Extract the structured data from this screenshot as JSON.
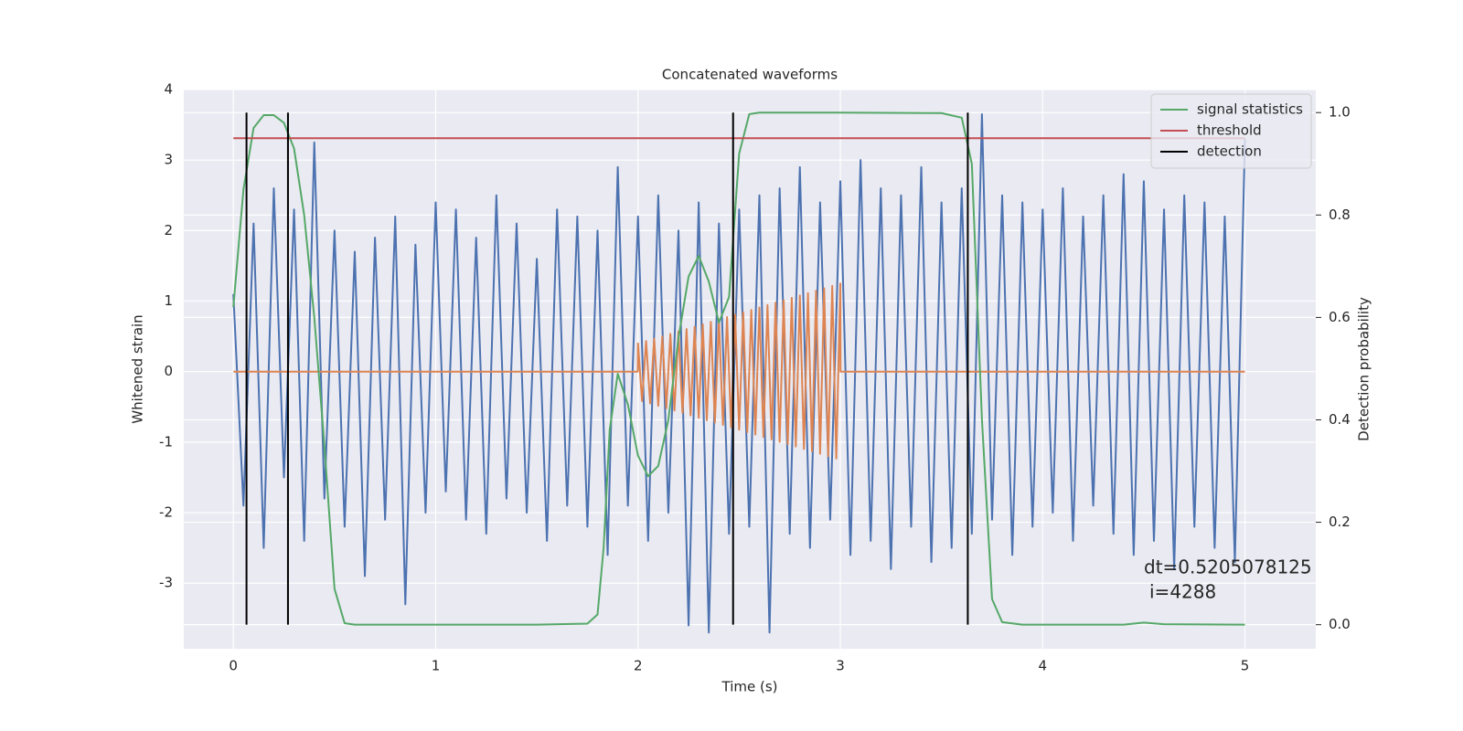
{
  "chart_data": {
    "type": "line",
    "title": "Concatenated waveforms",
    "xlabel": "Time (s)",
    "ylabel": "Whitened strain",
    "y2label": "Detection probability",
    "xlim": [
      -0.245,
      5.35
    ],
    "ylim": [
      -3.93,
      4.0
    ],
    "y2lim": [
      -0.047,
      1.045
    ],
    "xticks": [
      0,
      1,
      2,
      3,
      4,
      5
    ],
    "yticks": [
      -3,
      -2,
      -1,
      0,
      1,
      2,
      3,
      4
    ],
    "y2ticks": [
      {
        "value": 0,
        "label": "0.0"
      },
      {
        "value": 0.2,
        "label": "0.2"
      },
      {
        "value": 0.4,
        "label": "0.4"
      },
      {
        "value": 0.6,
        "label": "0.6"
      },
      {
        "value": 0.8,
        "label": "0.8"
      },
      {
        "value": 1,
        "label": "1.0"
      }
    ],
    "grid": true,
    "legend": "upper right",
    "annotation": [
      "dt=0.5205078125",
      "i=4288"
    ],
    "series": [
      {
        "color": "#4c72b0",
        "x": [
          0,
          0.05,
          0.1,
          0.15,
          0.2,
          0.25,
          0.3,
          0.35,
          0.4,
          0.45,
          0.5,
          0.55,
          0.6,
          0.65,
          0.7,
          0.75,
          0.8,
          0.85,
          0.9,
          0.95,
          1,
          1.05,
          1.1,
          1.15,
          1.2,
          1.25,
          1.3,
          1.35,
          1.4,
          1.45,
          1.5,
          1.55,
          1.6,
          1.65,
          1.7,
          1.75,
          1.8,
          1.85,
          1.9,
          1.95,
          2,
          2.05,
          2.1,
          2.15,
          2.2,
          2.25,
          2.3,
          2.35,
          2.4,
          2.45,
          2.5,
          2.55,
          2.6,
          2.65,
          2.7,
          2.75,
          2.8,
          2.85,
          2.9,
          2.95,
          3,
          3.05,
          3.1,
          3.15,
          3.2,
          3.25,
          3.3,
          3.35,
          3.4,
          3.45,
          3.5,
          3.55,
          3.6,
          3.65,
          3.7,
          3.75,
          3.8,
          3.85,
          3.9,
          3.95,
          4,
          4.05,
          4.1,
          4.15,
          4.2,
          4.25,
          4.3,
          4.35,
          4.4,
          4.45,
          4.5,
          4.55,
          4.6,
          4.65,
          4.7,
          4.75,
          4.8,
          4.85,
          4.9,
          4.95,
          5
        ],
        "values": [
          1.1,
          -1.9,
          2.1,
          -2.5,
          2.6,
          -1.5,
          2.3,
          -2.4,
          3.25,
          -1.8,
          2.0,
          -2.2,
          1.7,
          -2.9,
          1.9,
          -2.1,
          2.2,
          -3.3,
          1.8,
          -2.0,
          2.4,
          -1.7,
          2.3,
          -2.1,
          1.9,
          -2.3,
          2.5,
          -1.8,
          2.1,
          -2.0,
          1.6,
          -2.4,
          2.3,
          -1.9,
          2.2,
          -2.2,
          2.0,
          -2.6,
          2.9,
          -1.9,
          2.2,
          -2.4,
          2.5,
          -2.0,
          2.0,
          -3.6,
          2.4,
          -3.7,
          2.1,
          -2.3,
          2.3,
          -2.2,
          2.5,
          -3.7,
          2.6,
          -2.3,
          2.9,
          -2.5,
          2.4,
          -2.1,
          2.7,
          -2.6,
          3.0,
          -2.4,
          2.6,
          -2.8,
          2.5,
          -2.2,
          2.9,
          -2.7,
          2.4,
          -2.5,
          2.6,
          -2.3,
          3.65,
          -2.1,
          2.5,
          -2.6,
          2.4,
          -2.2,
          2.3,
          -2.0,
          2.6,
          -2.4,
          2.2,
          -1.9,
          2.5,
          -2.3,
          2.8,
          -2.6,
          2.7,
          -2.4,
          2.3,
          -2.8,
          2.5,
          -2.2,
          2.4,
          -2.5,
          2.2,
          -2.7,
          3.3
        ]
      },
      {
        "color": "#dd8452",
        "x": [
          0,
          1.999,
          2.0,
          2.02,
          2.04,
          2.06,
          2.08,
          2.1,
          2.12,
          2.14,
          2.16,
          2.18,
          2.2,
          2.22,
          2.24,
          2.26,
          2.28,
          2.3,
          2.32,
          2.34,
          2.36,
          2.38,
          2.4,
          2.42,
          2.44,
          2.46,
          2.48,
          2.5,
          2.52,
          2.54,
          2.56,
          2.58,
          2.6,
          2.62,
          2.64,
          2.66,
          2.68,
          2.7,
          2.72,
          2.74,
          2.76,
          2.78,
          2.8,
          2.82,
          2.84,
          2.86,
          2.88,
          2.9,
          2.92,
          2.94,
          2.96,
          2.98,
          3.0,
          3.001,
          5.0
        ],
        "values": [
          0,
          0,
          0.4,
          -0.417,
          0.434,
          -0.451,
          0.468,
          -0.485,
          0.502,
          -0.519,
          0.536,
          -0.553,
          0.57,
          -0.587,
          0.604,
          -0.621,
          0.638,
          -0.655,
          0.672,
          -0.689,
          0.706,
          -0.723,
          0.74,
          -0.757,
          0.774,
          -0.791,
          0.808,
          -0.825,
          0.842,
          -0.859,
          0.876,
          -0.893,
          0.91,
          -0.927,
          0.944,
          -0.961,
          0.978,
          -0.995,
          1.012,
          -1.029,
          1.046,
          -1.063,
          1.08,
          -1.097,
          1.114,
          -1.131,
          1.148,
          -1.165,
          1.182,
          -1.199,
          1.216,
          -1.233,
          1.25,
          0,
          0
        ]
      },
      {
        "name": "signal statistics",
        "color": "#55a868",
        "axis": "y2",
        "x": [
          0,
          0.05,
          0.1,
          0.15,
          0.2,
          0.25,
          0.3,
          0.35,
          0.4,
          0.45,
          0.5,
          0.55,
          0.6,
          1.0,
          1.5,
          1.75,
          1.8,
          1.83,
          1.86,
          1.9,
          1.95,
          2.0,
          2.05,
          2.1,
          2.15,
          2.2,
          2.25,
          2.3,
          2.35,
          2.4,
          2.45,
          2.5,
          2.55,
          2.6,
          3.0,
          3.5,
          3.6,
          3.65,
          3.7,
          3.75,
          3.8,
          3.9,
          4.4,
          4.5,
          4.6,
          5.0
        ],
        "values": [
          0.62,
          0.85,
          0.97,
          0.995,
          0.995,
          0.98,
          0.93,
          0.8,
          0.6,
          0.35,
          0.07,
          0.003,
          0,
          0,
          0,
          0.002,
          0.02,
          0.15,
          0.38,
          0.49,
          0.43,
          0.33,
          0.29,
          0.31,
          0.4,
          0.56,
          0.68,
          0.72,
          0.67,
          0.59,
          0.64,
          0.92,
          0.997,
          1.0,
          1.0,
          0.999,
          0.99,
          0.9,
          0.4,
          0.05,
          0.005,
          0,
          0,
          0.004,
          0.001,
          0
        ]
      },
      {
        "name": "threshold",
        "color": "#c44e52",
        "axis": "y2",
        "x": [
          0,
          5
        ],
        "values": [
          0.95,
          0.95
        ]
      },
      {
        "name": "detection",
        "color": "#000000",
        "axis": "y2",
        "x": [
          0.065,
          0.27,
          2.47,
          3.63
        ],
        "ymin": 0,
        "ymax": 1
      }
    ]
  }
}
